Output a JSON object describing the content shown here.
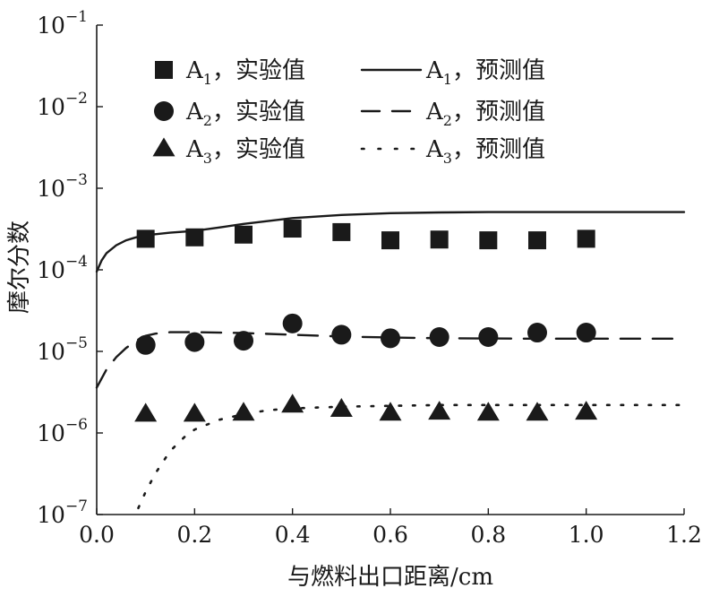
{
  "chart_data": {
    "type": "scatter",
    "title": "",
    "xlabel": "与燃料出口距离/cm",
    "ylabel": "摩尔分数",
    "xlim": [
      0.0,
      1.2
    ],
    "ylim": [
      1e-07,
      0.1
    ],
    "yscale": "log",
    "x_ticks": [
      "0.0",
      "0.2",
      "0.4",
      "0.6",
      "0.8",
      "1.0",
      "1.2"
    ],
    "x_tick_values": [
      0.0,
      0.2,
      0.4,
      0.6,
      0.8,
      1.0,
      1.2
    ],
    "y_ticks": [
      {
        "base": "10",
        "exp": "−1",
        "value": 0.1
      },
      {
        "base": "10",
        "exp": "−2",
        "value": 0.01
      },
      {
        "base": "10",
        "exp": "−3",
        "value": 0.001
      },
      {
        "base": "10",
        "exp": "−4",
        "value": 0.0001
      },
      {
        "base": "10",
        "exp": "−5",
        "value": 1e-05
      },
      {
        "base": "10",
        "exp": "−6",
        "value": 1e-06
      },
      {
        "base": "10",
        "exp": "−7",
        "value": 1e-07
      }
    ],
    "legend": {
      "position": "top",
      "entries": [
        {
          "marker": "square",
          "name": "A",
          "sub": "1",
          "suffix": "，实验值"
        },
        {
          "line": "solid",
          "name": "A",
          "sub": "1",
          "suffix": "，预测值"
        },
        {
          "marker": "circle",
          "name": "A",
          "sub": "2",
          "suffix": "，实验值"
        },
        {
          "line": "dashed",
          "name": "A",
          "sub": "2",
          "suffix": "，预测值"
        },
        {
          "marker": "triangle",
          "name": "A",
          "sub": "3",
          "suffix": "，实验值"
        },
        {
          "line": "dotted",
          "name": "A",
          "sub": "3",
          "suffix": "，预测值"
        }
      ]
    },
    "experimental": [
      {
        "name": "A1 实验值",
        "marker": "square",
        "x": [
          0.1,
          0.2,
          0.3,
          0.4,
          0.5,
          0.6,
          0.7,
          0.8,
          0.9,
          1.0
        ],
        "y": [
          0.00024,
          0.00025,
          0.00027,
          0.00032,
          0.00029,
          0.00023,
          0.000235,
          0.00023,
          0.00023,
          0.00024
        ]
      },
      {
        "name": "A2 实验值",
        "marker": "circle",
        "x": [
          0.1,
          0.2,
          0.3,
          0.4,
          0.5,
          0.6,
          0.7,
          0.8,
          0.9,
          1.0
        ],
        "y": [
          1.2e-05,
          1.3e-05,
          1.35e-05,
          2.2e-05,
          1.6e-05,
          1.45e-05,
          1.5e-05,
          1.5e-05,
          1.7e-05,
          1.7e-05
        ]
      },
      {
        "name": "A3 实验值",
        "marker": "triangle",
        "x": [
          0.1,
          0.2,
          0.3,
          0.4,
          0.5,
          0.6,
          0.7,
          0.8,
          0.9,
          1.0
        ],
        "y": [
          1.7e-06,
          1.7e-06,
          1.75e-06,
          2.2e-06,
          1.95e-06,
          1.75e-06,
          1.8e-06,
          1.75e-06,
          1.75e-06,
          1.8e-06
        ]
      }
    ],
    "predicted": [
      {
        "name": "A1 预测值",
        "style": "solid",
        "x": [
          0.0,
          0.01,
          0.02,
          0.04,
          0.06,
          0.08,
          0.1,
          0.15,
          0.2,
          0.25,
          0.3,
          0.4,
          0.5,
          0.6,
          0.7,
          0.8,
          0.9,
          1.0,
          1.1,
          1.2
        ],
        "y": [
          9.5e-05,
          0.00013,
          0.00016,
          0.0002,
          0.00023,
          0.00025,
          0.000265,
          0.000285,
          0.0003,
          0.00033,
          0.000365,
          0.00043,
          0.00047,
          0.000495,
          0.000505,
          0.00051,
          0.00051,
          0.00051,
          0.00051,
          0.00051
        ]
      },
      {
        "name": "A2 预测值",
        "style": "dashed",
        "x": [
          0.0,
          0.02,
          0.04,
          0.06,
          0.08,
          0.1,
          0.12,
          0.15,
          0.2,
          0.3,
          0.4,
          0.5,
          0.6,
          0.7,
          0.8,
          0.9,
          1.0,
          1.1,
          1.2
        ],
        "y": [
          3.6e-06,
          6e-06,
          8.5e-06,
          1.1e-05,
          1.35e-05,
          1.55e-05,
          1.65e-05,
          1.72e-05,
          1.72e-05,
          1.68e-05,
          1.6e-05,
          1.52e-05,
          1.48e-05,
          1.45e-05,
          1.44e-05,
          1.43e-05,
          1.43e-05,
          1.43e-05,
          1.43e-05
        ]
      },
      {
        "name": "A3 预测值",
        "style": "dotted",
        "x": [
          0.085,
          0.1,
          0.12,
          0.15,
          0.18,
          0.2,
          0.25,
          0.3,
          0.35,
          0.4,
          0.5,
          0.6,
          0.7,
          0.8,
          0.9,
          1.0,
          1.1,
          1.2
        ],
        "y": [
          1.2e-07,
          1.9e-07,
          3.2e-07,
          6e-07,
          9e-07,
          1.1e-06,
          1.45e-06,
          1.7e-06,
          1.9e-06,
          2e-06,
          2.1e-06,
          2.15e-06,
          2.2e-06,
          2.2e-06,
          2.2e-06,
          2.2e-06,
          2.2e-06,
          2.2e-06
        ]
      }
    ]
  }
}
